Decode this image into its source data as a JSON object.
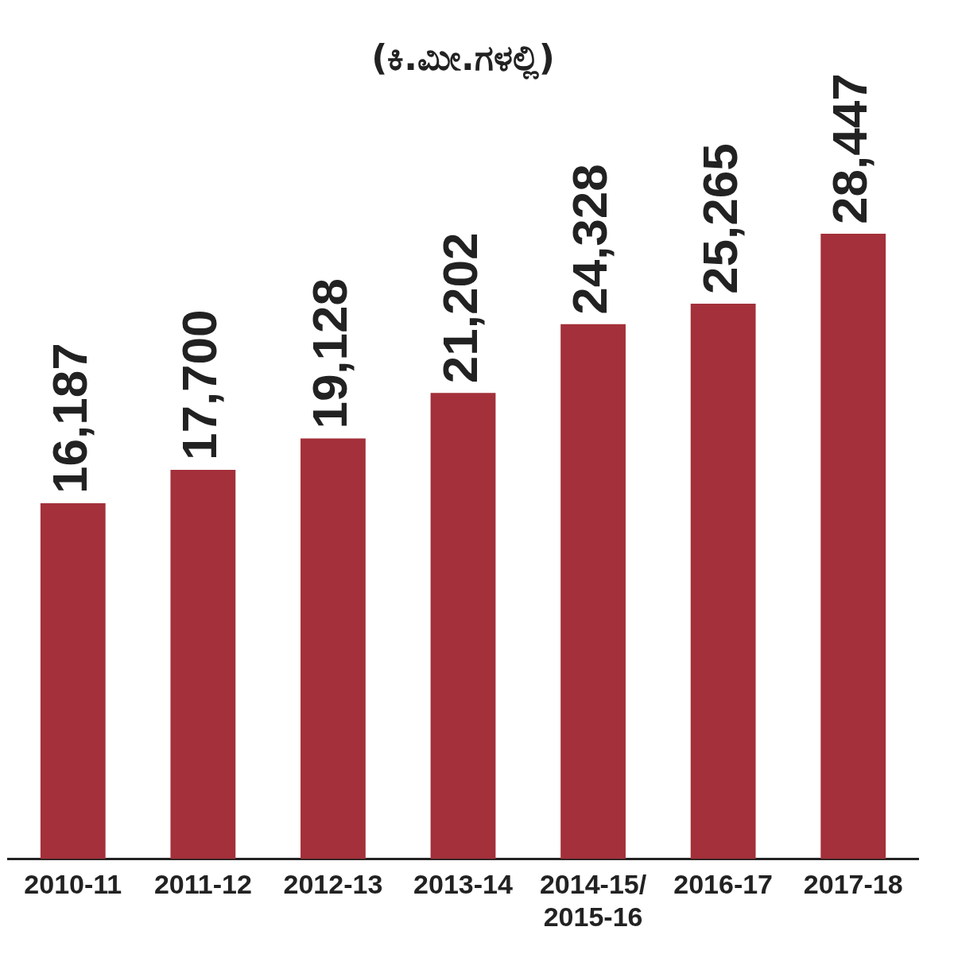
{
  "chart_data": {
    "type": "bar",
    "title": "(ಕಿ.ಮೀ.ಗಳಲ್ಲಿ)",
    "categories": [
      "2010-11",
      "2011-12",
      "2012-13",
      "2013-14",
      "2014-15/ 2015-16",
      "2016-17",
      "2017-18"
    ],
    "values": [
      16187,
      17700,
      19128,
      21202,
      24328,
      25265,
      28447
    ],
    "value_labels": [
      "16,187",
      "17,700",
      "19,128",
      "21,202",
      "24,328",
      "25,265",
      "28,447"
    ],
    "color": "#a3303a",
    "grid": false,
    "legend": false
  }
}
